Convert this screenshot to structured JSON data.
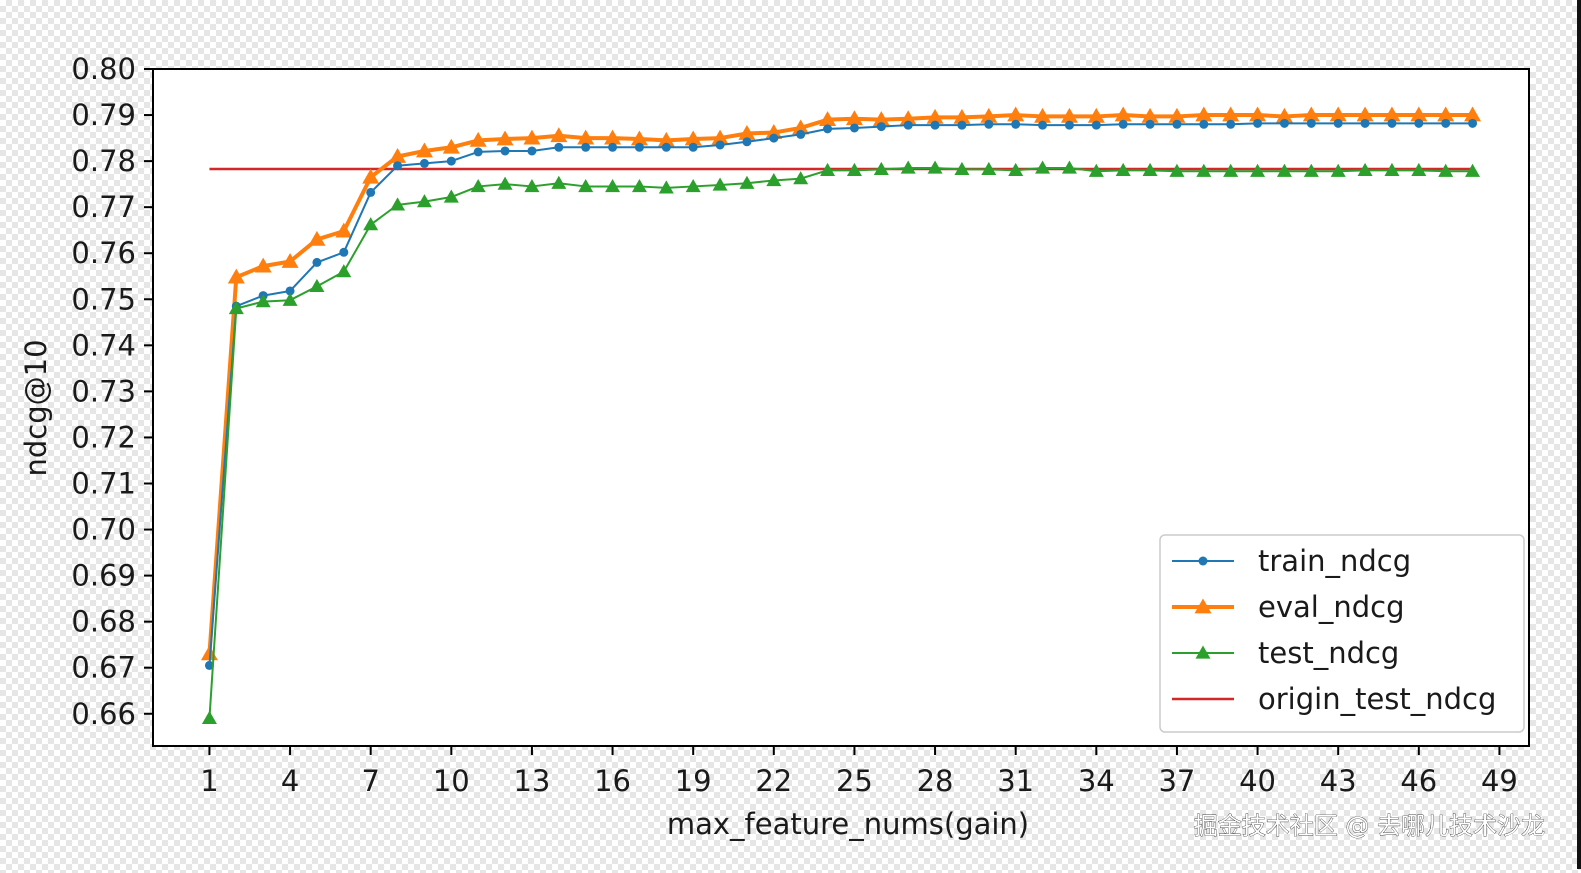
{
  "chart_data": {
    "type": "line",
    "title": "",
    "xlabel": "max_feature_nums(gain)",
    "ylabel": "ndcg@10",
    "xlim": [
      -1.1,
      50.1
    ],
    "ylim": [
      0.653,
      0.8
    ],
    "xticks": [
      1,
      4,
      7,
      10,
      13,
      16,
      19,
      22,
      25,
      28,
      31,
      34,
      37,
      40,
      43,
      46,
      49
    ],
    "yticks": [
      0.66,
      0.67,
      0.68,
      0.69,
      0.7,
      0.71,
      0.72,
      0.73,
      0.74,
      0.75,
      0.76,
      0.77,
      0.78,
      0.79,
      0.8
    ],
    "ytick_labels": [
      "0.66",
      "0.67",
      "0.68",
      "0.69",
      "0.70",
      "0.71",
      "0.72",
      "0.73",
      "0.74",
      "0.75",
      "0.76",
      "0.77",
      "0.78",
      "0.79",
      "0.80"
    ],
    "grid": false,
    "legend_position": "lower-right",
    "x": [
      1,
      2,
      3,
      4,
      5,
      6,
      7,
      8,
      9,
      10,
      11,
      12,
      13,
      14,
      15,
      16,
      17,
      18,
      19,
      20,
      21,
      22,
      23,
      24,
      25,
      26,
      27,
      28,
      29,
      30,
      31,
      32,
      33,
      34,
      35,
      36,
      37,
      38,
      39,
      40,
      41,
      42,
      43,
      44,
      45,
      46,
      47,
      48
    ],
    "series": [
      {
        "name": "train_ndcg",
        "color": "#1f77b4",
        "marker": "circle",
        "width": 2,
        "values": [
          0.6705,
          0.7485,
          0.7508,
          0.7518,
          0.758,
          0.7602,
          0.7732,
          0.779,
          0.7795,
          0.78,
          0.782,
          0.7822,
          0.7822,
          0.783,
          0.783,
          0.783,
          0.783,
          0.783,
          0.783,
          0.7835,
          0.7842,
          0.785,
          0.7858,
          0.787,
          0.7872,
          0.7875,
          0.7878,
          0.7878,
          0.7878,
          0.788,
          0.788,
          0.7878,
          0.7878,
          0.7878,
          0.788,
          0.788,
          0.788,
          0.788,
          0.788,
          0.7882,
          0.7882,
          0.7882,
          0.7882,
          0.7882,
          0.7882,
          0.7882,
          0.7882,
          0.7882
        ]
      },
      {
        "name": "eval_ndcg",
        "color": "#ff7f0e",
        "marker": "triangle",
        "width": 4,
        "values": [
          0.673,
          0.7548,
          0.7572,
          0.7582,
          0.763,
          0.7648,
          0.7765,
          0.781,
          0.7822,
          0.783,
          0.7845,
          0.7848,
          0.785,
          0.7855,
          0.785,
          0.785,
          0.7848,
          0.7845,
          0.7848,
          0.785,
          0.786,
          0.7862,
          0.7872,
          0.789,
          0.7892,
          0.789,
          0.7892,
          0.7895,
          0.7895,
          0.7897,
          0.79,
          0.7897,
          0.7897,
          0.7897,
          0.79,
          0.7897,
          0.7897,
          0.79,
          0.79,
          0.79,
          0.7897,
          0.79,
          0.79,
          0.79,
          0.79,
          0.79,
          0.79,
          0.79
        ]
      },
      {
        "name": "test_ndcg",
        "color": "#2ca02c",
        "marker": "triangle",
        "width": 2,
        "values": [
          0.659,
          0.748,
          0.7495,
          0.7498,
          0.7528,
          0.756,
          0.7662,
          0.7705,
          0.7712,
          0.7722,
          0.7745,
          0.775,
          0.7745,
          0.7752,
          0.7745,
          0.7745,
          0.7745,
          0.7742,
          0.7745,
          0.7748,
          0.7752,
          0.7758,
          0.7762,
          0.778,
          0.778,
          0.7782,
          0.7785,
          0.7785,
          0.7782,
          0.7782,
          0.778,
          0.7785,
          0.7785,
          0.7778,
          0.778,
          0.778,
          0.7778,
          0.7778,
          0.7778,
          0.7778,
          0.7778,
          0.7778,
          0.7778,
          0.778,
          0.778,
          0.778,
          0.7778,
          0.7778
        ]
      },
      {
        "name": "origin_test_ndcg",
        "color": "#d62728",
        "marker": "none",
        "width": 2.5,
        "values": [
          0.7783,
          0.7783,
          0.7783,
          0.7783,
          0.7783,
          0.7783,
          0.7783,
          0.7783,
          0.7783,
          0.7783,
          0.7783,
          0.7783,
          0.7783,
          0.7783,
          0.7783,
          0.7783,
          0.7783,
          0.7783,
          0.7783,
          0.7783,
          0.7783,
          0.7783,
          0.7783,
          0.7783,
          0.7783,
          0.7783,
          0.7783,
          0.7783,
          0.7783,
          0.7783,
          0.7783,
          0.7783,
          0.7783,
          0.7783,
          0.7783,
          0.7783,
          0.7783,
          0.7783,
          0.7783,
          0.7783,
          0.7783,
          0.7783,
          0.7783,
          0.7783,
          0.7783,
          0.7783,
          0.7783,
          0.7783
        ]
      }
    ]
  },
  "watermark": "掘金技术社区 @ 去哪儿技术沙龙"
}
